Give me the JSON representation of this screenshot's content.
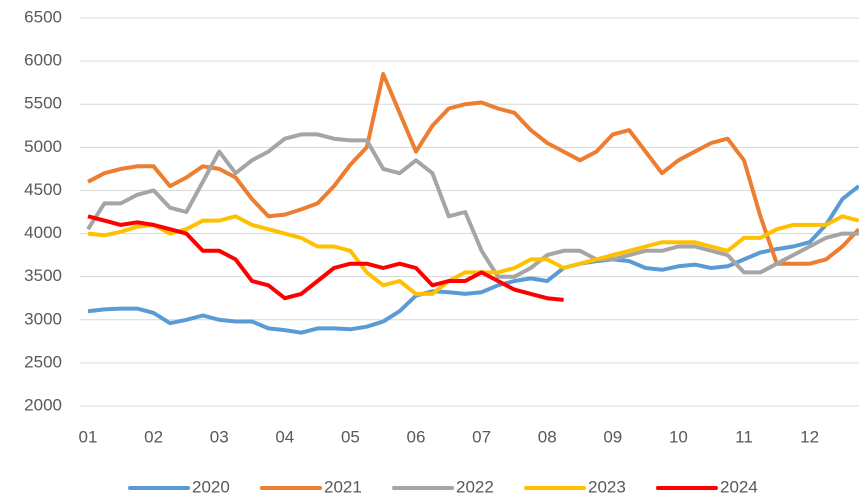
{
  "chart_data": {
    "type": "line",
    "categories": [
      "01",
      null,
      null,
      null,
      "02",
      null,
      null,
      null,
      "03",
      null,
      null,
      null,
      "04",
      null,
      null,
      null,
      "05",
      null,
      null,
      null,
      "06",
      null,
      null,
      null,
      "07",
      null,
      null,
      null,
      "08",
      null,
      null,
      null,
      "09",
      null,
      null,
      null,
      "10",
      null,
      null,
      null,
      "11",
      null,
      null,
      null,
      "12",
      null,
      null,
      null
    ],
    "ylim": [
      2000,
      6500
    ],
    "yticks": [
      2000,
      2500,
      3000,
      3500,
      4000,
      4500,
      5000,
      5500,
      6000,
      6500
    ],
    "grid": true,
    "legend": "bottom",
    "series": [
      {
        "name": "2020",
        "color": "#5b9bd5",
        "values": [
          3100,
          3120,
          3130,
          3130,
          3080,
          2960,
          3000,
          3050,
          3000,
          2980,
          2980,
          2900,
          2880,
          2850,
          2900,
          2900,
          2890,
          2920,
          2980,
          3100,
          3280,
          3330,
          3320,
          3300,
          3320,
          3400,
          3450,
          3480,
          3450,
          3600,
          3650,
          3680,
          3700,
          3680,
          3600,
          3580,
          3620,
          3640,
          3600,
          3620,
          3700,
          3780,
          3820,
          3850,
          3900,
          4100,
          4400,
          4550
        ]
      },
      {
        "name": "2021",
        "color": "#ed7d31",
        "values": [
          4600,
          4700,
          4750,
          4780,
          4780,
          4550,
          4650,
          4780,
          4750,
          4650,
          4400,
          4200,
          4220,
          4280,
          4350,
          4550,
          4800,
          5000,
          5850,
          5400,
          4950,
          5250,
          5450,
          5500,
          5520,
          5450,
          5400,
          5200,
          5050,
          4950,
          4850,
          4950,
          5150,
          5200,
          4950,
          4700,
          4850,
          4950,
          5050,
          5100,
          4850,
          4200,
          3650,
          3650,
          3650,
          3700,
          3850,
          4050
        ]
      },
      {
        "name": "2022",
        "color": "#a5a5a5",
        "values": [
          4050,
          4350,
          4350,
          4450,
          4500,
          4300,
          4250,
          4600,
          4950,
          4700,
          4850,
          4950,
          5100,
          5150,
          5150,
          5100,
          5080,
          5080,
          4750,
          4700,
          4850,
          4700,
          4200,
          4250,
          3800,
          3500,
          3500,
          3600,
          3750,
          3800,
          3800,
          3700,
          3700,
          3750,
          3800,
          3800,
          3850,
          3850,
          3800,
          3750,
          3550,
          3550,
          3650,
          3750,
          3850,
          3950,
          4000,
          4000
        ]
      },
      {
        "name": "2023",
        "color": "#ffc000",
        "values": [
          4000,
          3980,
          4020,
          4080,
          4100,
          4000,
          4050,
          4150,
          4150,
          4200,
          4100,
          4050,
          4000,
          3950,
          3850,
          3850,
          3800,
          3550,
          3400,
          3450,
          3300,
          3300,
          3450,
          3550,
          3550,
          3550,
          3600,
          3700,
          3700,
          3600,
          3650,
          3700,
          3750,
          3800,
          3850,
          3900,
          3900,
          3900,
          3850,
          3800,
          3950,
          3950,
          4050,
          4100,
          4100,
          4100,
          4200,
          4150
        ]
      },
      {
        "name": "2024",
        "color": "#ff0000",
        "values": [
          4200,
          4150,
          4100,
          4130,
          4100,
          4050,
          4000,
          3800,
          3800,
          3700,
          3450,
          3400,
          3250,
          3300,
          3450,
          3600,
          3650,
          3650,
          3600,
          3650,
          3600,
          3400,
          3450,
          3450,
          3550,
          3450,
          3350,
          3300,
          3250,
          3230,
          null,
          null,
          null,
          null,
          null,
          null,
          null,
          null,
          null,
          null,
          null,
          null,
          null,
          null,
          null,
          null,
          null,
          null
        ]
      }
    ]
  }
}
